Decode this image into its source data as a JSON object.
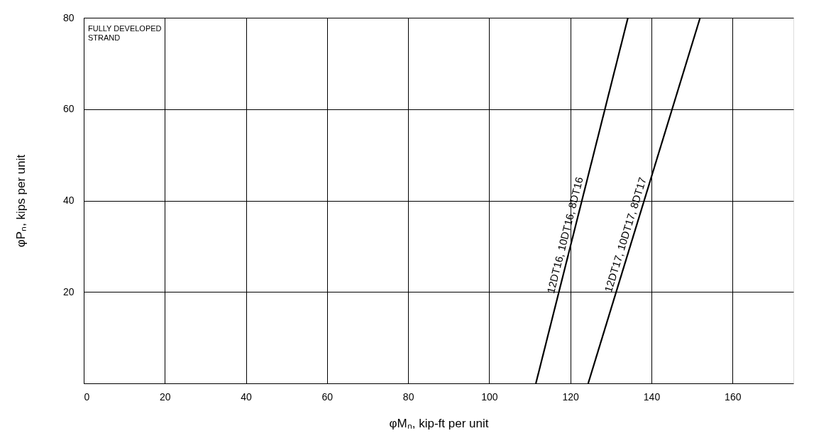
{
  "chart_data": {
    "type": "line",
    "xlabel": "φMₙ, kip-ft per unit",
    "ylabel": "φPₙ, kips per unit",
    "annotations": [
      "FULLY DEVELOPED\nSTRAND"
    ],
    "series": [
      {
        "name": "12DT16, 10DT16, 8DT16",
        "color": "#000000",
        "x": [
          111.5,
          134.2
        ],
        "values": [
          0,
          80
        ]
      },
      {
        "name": "12DT17, 10DT17, 8DT17",
        "color": "#000000",
        "x": [
          124.4,
          152
        ],
        "values": [
          0,
          80
        ]
      }
    ],
    "xlim": [
      0,
      175
    ],
    "ylim": [
      0,
      80
    ],
    "xticks": [
      0,
      20,
      40,
      60,
      80,
      100,
      120,
      140,
      160
    ],
    "yticks": [
      20,
      40,
      60,
      80
    ],
    "grid": true,
    "line_style": "solid",
    "marker": "none"
  }
}
